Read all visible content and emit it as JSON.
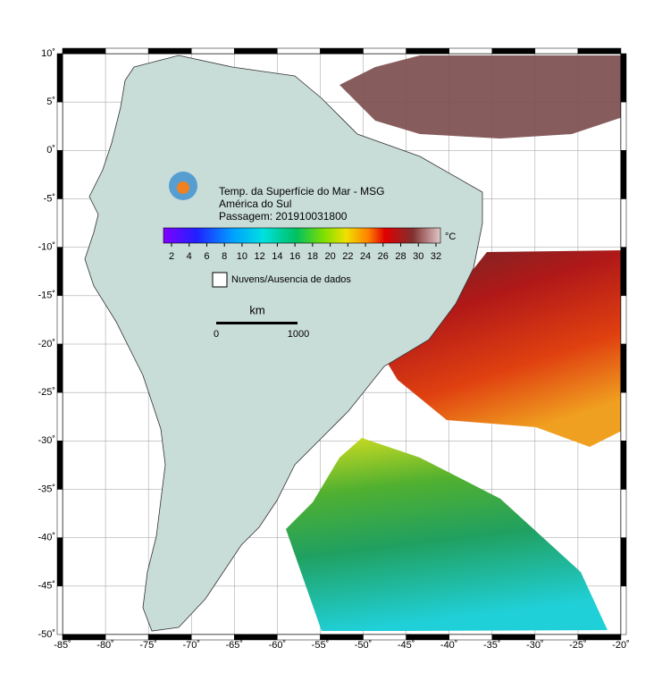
{
  "header": {
    "lines": [
      "Temp. da Superfície do Mar - MSG",
      "América do Sul",
      "Passagem: 201910031800"
    ]
  },
  "colorbar": {
    "unit": "°C",
    "ticks": [
      "2",
      "4",
      "6",
      "8",
      "10",
      "12",
      "14",
      "16",
      "18",
      "20",
      "22",
      "24",
      "26",
      "28",
      "30",
      "32"
    ]
  },
  "legend": {
    "label": "Nuvens/Ausencia de dados"
  },
  "scale_bar": {
    "unit": "km",
    "labels": [
      "0",
      "1000"
    ]
  },
  "axes": {
    "x_labels": [
      "-85˚",
      "-80˚",
      "-75˚",
      "-70˚",
      "-65˚",
      "-60˚",
      "-55˚",
      "-50˚",
      "-45˚",
      "-40˚",
      "-35˚",
      "-30˚",
      "-25˚",
      "-20˚"
    ],
    "y_labels": [
      "10˚",
      "5˚",
      "0˚",
      "-5˚",
      "-10˚",
      "-15˚",
      "-20˚",
      "-25˚",
      "-30˚",
      "-35˚",
      "-40˚",
      "-45˚",
      "-50˚"
    ]
  }
}
